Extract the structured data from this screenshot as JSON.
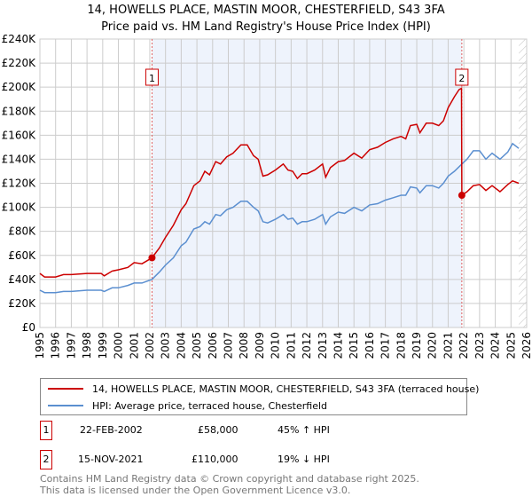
{
  "title": [
    "14, HOWELLS PLACE, MASTIN MOOR, CHESTERFIELD, S43 3FA",
    "Price paid vs. HM Land Registry's House Price Index (HPI)"
  ],
  "colors": {
    "property": "#cc0000",
    "hpi": "#5b8fd0",
    "shade": "#eef3fc",
    "marker": "#e06060"
  },
  "chart_data": {
    "type": "line",
    "xlim": [
      1995,
      2026
    ],
    "ylim": [
      0,
      240000
    ],
    "x_ticks": [
      "1995",
      "1996",
      "1997",
      "1998",
      "1999",
      "2000",
      "2001",
      "2002",
      "2003",
      "2004",
      "2005",
      "2006",
      "2007",
      "2008",
      "2009",
      "2010",
      "2011",
      "2012",
      "2013",
      "2014",
      "2015",
      "2016",
      "2017",
      "2018",
      "2019",
      "2020",
      "2021",
      "2022",
      "2023",
      "2024",
      "2025",
      "2026"
    ],
    "y_ticks": [
      {
        "v": 0,
        "l": "£0"
      },
      {
        "v": 20000,
        "l": "£20K"
      },
      {
        "v": 40000,
        "l": "£40K"
      },
      {
        "v": 60000,
        "l": "£60K"
      },
      {
        "v": 80000,
        "l": "£80K"
      },
      {
        "v": 100000,
        "l": "£100K"
      },
      {
        "v": 120000,
        "l": "£120K"
      },
      {
        "v": 140000,
        "l": "£140K"
      },
      {
        "v": 160000,
        "l": "£160K"
      },
      {
        "v": 180000,
        "l": "£180K"
      },
      {
        "v": 200000,
        "l": "£200K"
      },
      {
        "v": 220000,
        "l": "£220K"
      },
      {
        "v": 240000,
        "l": "£240K"
      }
    ],
    "grid": true,
    "shaded_range": [
      2002.14,
      2021.87
    ],
    "forecast_hatch_from": 2025.5,
    "series": [
      {
        "name": "14, HOWELLS PLACE, MASTIN MOOR, CHESTERFIELD, S43 3FA (terraced house)",
        "color": "#cc0000",
        "x": [
          1995,
          1995.3,
          1996,
          1996.5,
          1997,
          1998,
          1998.9,
          1999.1,
          1999.6,
          2000,
          2000.6,
          2001,
          2001.5,
          2002.14,
          2002.6,
          2003,
          2003.5,
          2004,
          2004.3,
          2004.8,
          2005.2,
          2005.5,
          2005.8,
          2006.2,
          2006.5,
          2006.9,
          2007.3,
          2007.8,
          2008.2,
          2008.6,
          2008.9,
          2009.2,
          2009.5,
          2010,
          2010.5,
          2010.8,
          2011.1,
          2011.4,
          2011.7,
          2012,
          2012.5,
          2013,
          2013.2,
          2013.5,
          2014,
          2014.4,
          2015,
          2015.5,
          2016,
          2016.5,
          2017,
          2017.5,
          2018,
          2018.3,
          2018.6,
          2019,
          2019.2,
          2019.6,
          2020,
          2020.4,
          2020.7,
          2021,
          2021.4,
          2021.7,
          2021.85,
          2021.87,
          2022.2,
          2022.6,
          2023,
          2023.4,
          2023.8,
          2024.3,
          2024.8,
          2025.1,
          2025.5
        ],
        "y": [
          45000,
          42000,
          42000,
          44000,
          44000,
          45000,
          45000,
          43000,
          47000,
          48000,
          50000,
          54000,
          53000,
          58000,
          66000,
          75000,
          85000,
          98000,
          103000,
          118000,
          122000,
          130000,
          127000,
          138000,
          136000,
          142000,
          145000,
          152000,
          152000,
          143000,
          140000,
          126000,
          127000,
          131000,
          136000,
          131000,
          130000,
          124000,
          128000,
          128000,
          131000,
          136000,
          125000,
          133000,
          138000,
          139000,
          145000,
          141000,
          148000,
          150000,
          154000,
          157000,
          159000,
          157000,
          168000,
          169000,
          162000,
          170000,
          170000,
          168000,
          172000,
          183000,
          192000,
          198000,
          199000,
          110000,
          113000,
          118000,
          119000,
          114000,
          118000,
          113000,
          119000,
          122000,
          120000
        ]
      },
      {
        "name": "HPI: Average price, terraced house, Chesterfield",
        "color": "#5b8fd0",
        "x": [
          1995,
          1995.3,
          1996,
          1996.5,
          1997,
          1998,
          1998.9,
          1999.1,
          1999.6,
          2000,
          2000.6,
          2001,
          2001.5,
          2002.14,
          2002.6,
          2003,
          2003.5,
          2004,
          2004.3,
          2004.8,
          2005.2,
          2005.5,
          2005.8,
          2006.2,
          2006.5,
          2006.9,
          2007.3,
          2007.8,
          2008.2,
          2008.6,
          2008.9,
          2009.2,
          2009.5,
          2010,
          2010.5,
          2010.8,
          2011.1,
          2011.4,
          2011.7,
          2012,
          2012.5,
          2013,
          2013.2,
          2013.5,
          2014,
          2014.4,
          2015,
          2015.5,
          2016,
          2016.5,
          2017,
          2017.5,
          2018,
          2018.3,
          2018.6,
          2019,
          2019.2,
          2019.6,
          2020,
          2020.4,
          2020.7,
          2021,
          2021.4,
          2021.87,
          2022.2,
          2022.6,
          2023,
          2023.4,
          2023.8,
          2024.3,
          2024.8,
          2025.1,
          2025.5
        ],
        "y": [
          31000,
          29000,
          29000,
          30000,
          30000,
          31000,
          31000,
          30000,
          33000,
          33000,
          35000,
          37000,
          37000,
          40000,
          46000,
          52000,
          58000,
          68000,
          71000,
          82000,
          84000,
          88000,
          86000,
          94000,
          93000,
          98000,
          100000,
          105000,
          105000,
          100000,
          97000,
          88000,
          87000,
          90000,
          94000,
          90000,
          91000,
          86000,
          88000,
          88000,
          90000,
          94000,
          86000,
          92000,
          96000,
          95000,
          100000,
          97000,
          102000,
          103000,
          106000,
          108000,
          110000,
          110000,
          117000,
          116000,
          112000,
          118000,
          118000,
          116000,
          120000,
          126000,
          130000,
          136000,
          140000,
          147000,
          147000,
          140000,
          145000,
          140000,
          146000,
          153000,
          149000
        ]
      }
    ],
    "annotations": [
      {
        "label": "1",
        "x": 2002.14,
        "y": 58000
      },
      {
        "label": "2",
        "x": 2021.87,
        "y": 110000
      }
    ]
  },
  "legend": [
    "14, HOWELLS PLACE, MASTIN MOOR, CHESTERFIELD, S43 3FA (terraced house)",
    "HPI: Average price, terraced house, Chesterfield"
  ],
  "sales": [
    {
      "num": "1",
      "date": "22-FEB-2002",
      "price": "£58,000",
      "hpi": "45% ↑ HPI"
    },
    {
      "num": "2",
      "date": "15-NOV-2021",
      "price": "£110,000",
      "hpi": "19% ↓ HPI"
    }
  ],
  "footer": [
    "Contains HM Land Registry data © Crown copyright and database right 2025.",
    "This data is licensed under the Open Government Licence v3.0."
  ]
}
